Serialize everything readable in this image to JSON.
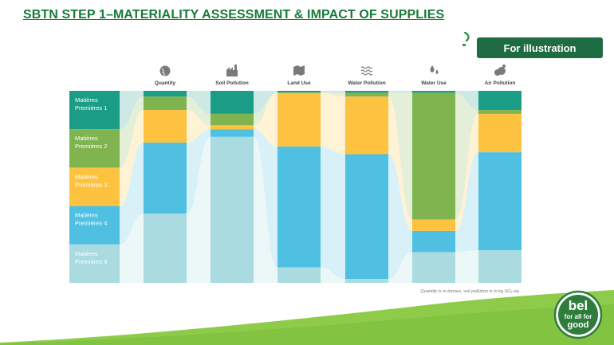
{
  "slide": {
    "title": "SBTN STEP 1–MATERIALITY ASSESSMENT & IMPACT OF SUPPLIES",
    "badge": "For illustration",
    "footnote": "Quantity is in tonnes, soil pollution is in kg SO₂ eq.",
    "logo": {
      "top": "bel",
      "line1": "for all for",
      "line2": "good"
    }
  },
  "colors": {
    "title": "#177a3a",
    "badge_bg": "#1f6b42",
    "swoosh": "#8ecb4b",
    "logo_green": "#2e7d3c"
  },
  "chart_data": {
    "type": "stacked_bar_normalized",
    "title": "",
    "ylabel": "",
    "xlabel": "",
    "ylim": [
      0,
      100
    ],
    "grid": false,
    "legend": "left",
    "categories": [
      "Quantity",
      "Soil Pollution",
      "Land Use",
      "Water Pollution",
      "Water Use",
      "Air Pollution"
    ],
    "category_icons": [
      "globe-icon",
      "factory-icon",
      "map-icon",
      "waves-icon",
      "water-drops-icon",
      "smoke-cloud-icon"
    ],
    "series": [
      {
        "name": "Matières Premières 1",
        "color": "#1b9c87",
        "values": [
          3,
          12,
          1,
          1,
          1,
          10
        ]
      },
      {
        "name": "Matières Premières 2",
        "color": "#7fb44f",
        "values": [
          7,
          6,
          0,
          2,
          66,
          2
        ]
      },
      {
        "name": "Matières Premières 3",
        "color": "#fdc340",
        "values": [
          17,
          2,
          28,
          30,
          6,
          20
        ]
      },
      {
        "name": "Matières Premières 4",
        "color": "#4fc0e1",
        "values": [
          37,
          4,
          63,
          65,
          11,
          51
        ]
      },
      {
        "name": "Matières Premières 5",
        "color": "#a9dbe0",
        "values": [
          36,
          76,
          8,
          2,
          16,
          17
        ]
      }
    ]
  }
}
